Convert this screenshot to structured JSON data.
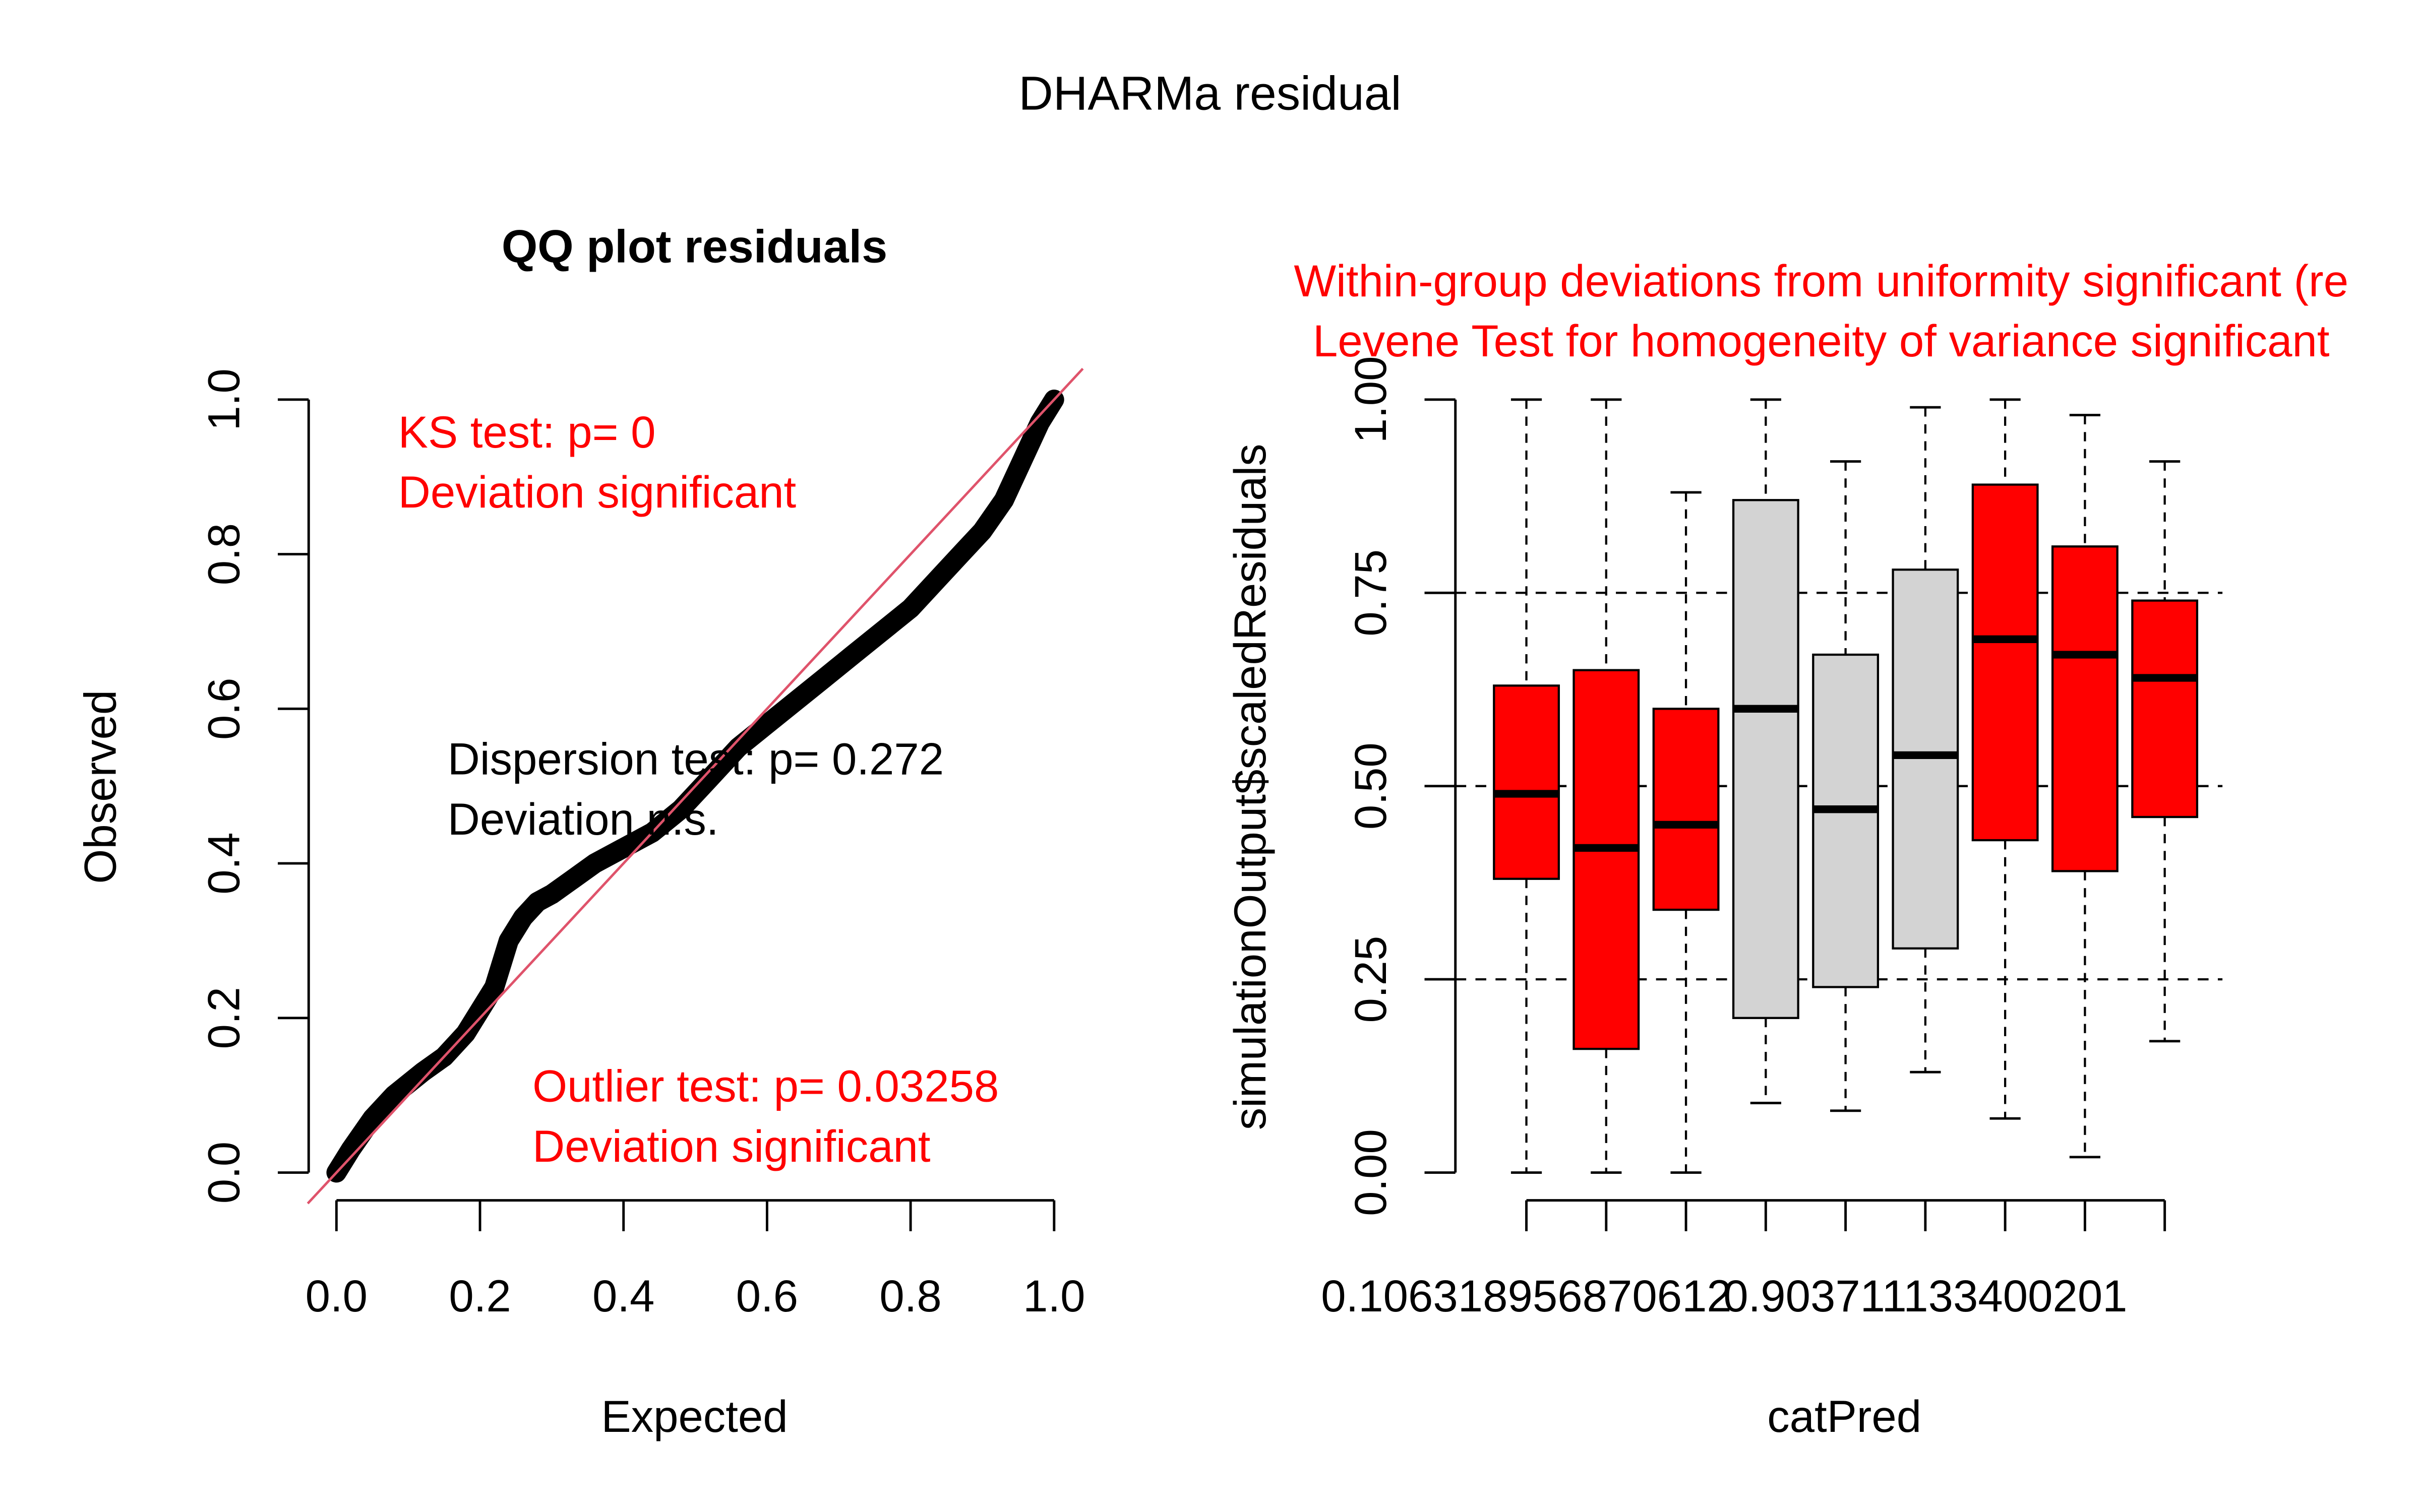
{
  "figure": {
    "title": "DHARMa residual"
  },
  "chart_data": [
    {
      "type": "scatter",
      "title": "QQ plot residuals",
      "xlabel": "Expected",
      "ylabel": "Observed",
      "xlim": [
        0,
        1
      ],
      "ylim": [
        0,
        1
      ],
      "xticks": [
        "0.0",
        "0.2",
        "0.4",
        "0.6",
        "0.8",
        "1.0"
      ],
      "yticks": [
        "0.0",
        "0.2",
        "0.4",
        "0.6",
        "0.8",
        "1.0"
      ],
      "reference_line": {
        "from": [
          0,
          0
        ],
        "to": [
          1,
          1
        ],
        "color": "#DF536B"
      },
      "point_color": "#000000",
      "qq_curve": {
        "x": [
          0.0,
          0.02,
          0.05,
          0.08,
          0.12,
          0.15,
          0.18,
          0.2,
          0.22,
          0.24,
          0.26,
          0.28,
          0.3,
          0.33,
          0.36,
          0.4,
          0.44,
          0.48,
          0.52,
          0.56,
          0.6,
          0.64,
          0.68,
          0.72,
          0.76,
          0.8,
          0.84,
          0.87,
          0.9,
          0.93,
          0.96,
          0.98,
          1.0
        ],
        "y": [
          0.0,
          0.03,
          0.07,
          0.1,
          0.13,
          0.15,
          0.18,
          0.21,
          0.24,
          0.3,
          0.33,
          0.35,
          0.36,
          0.38,
          0.4,
          0.42,
          0.44,
          0.47,
          0.51,
          0.55,
          0.58,
          0.61,
          0.64,
          0.67,
          0.7,
          0.73,
          0.77,
          0.8,
          0.83,
          0.87,
          0.93,
          0.97,
          1.0
        ]
      },
      "annotations": {
        "ks_line1": "KS test: p= 0",
        "ks_line2": "Deviation  significant",
        "dispersion_line1": "Dispersion test: p= 0.272",
        "dispersion_line2": "Deviation n.s.",
        "outlier_line1": "Outlier test: p= 0.03258",
        "outlier_line2": "Deviation  significant"
      },
      "annotation_colors": {
        "significant": "#FF0000",
        "ns": "#000000"
      }
    },
    {
      "type": "box",
      "title_line1": "Within-group deviations from uniformity significant (re",
      "title_line2": "Levene Test for homogeneity of variance significant",
      "title_color": "#FF0000",
      "xlabel": "catPred",
      "ylabel": "simulationOutput$scaledResiduals",
      "ylim": [
        0,
        1
      ],
      "yticks": [
        "0.00",
        "0.25",
        "0.50",
        "0.75",
        "1.00"
      ],
      "xtick_labels": [
        "0.106318956870612",
        "0.903711133400201"
      ],
      "hlines": [
        0.25,
        0.5,
        0.75
      ],
      "colors": {
        "flagged": "#FF0000",
        "normal": "#D3D3D3"
      },
      "boxes": [
        {
          "min": 0.0,
          "q1": 0.38,
          "median": 0.49,
          "q3": 0.63,
          "max": 1.0,
          "flagged": true
        },
        {
          "min": 0.0,
          "q1": 0.16,
          "median": 0.42,
          "q3": 0.65,
          "max": 1.0,
          "flagged": true
        },
        {
          "min": 0.0,
          "q1": 0.34,
          "median": 0.45,
          "q3": 0.6,
          "max": 0.88,
          "flagged": true
        },
        {
          "min": 0.09,
          "q1": 0.2,
          "median": 0.6,
          "q3": 0.87,
          "max": 1.0,
          "flagged": false
        },
        {
          "min": 0.08,
          "q1": 0.24,
          "median": 0.47,
          "q3": 0.67,
          "max": 0.92,
          "flagged": false
        },
        {
          "min": 0.13,
          "q1": 0.29,
          "median": 0.54,
          "q3": 0.78,
          "max": 0.99,
          "flagged": false
        },
        {
          "min": 0.07,
          "q1": 0.43,
          "median": 0.69,
          "q3": 0.89,
          "max": 1.0,
          "flagged": true
        },
        {
          "min": 0.02,
          "q1": 0.39,
          "median": 0.67,
          "q3": 0.81,
          "max": 0.98,
          "flagged": true
        },
        {
          "min": 0.17,
          "q1": 0.46,
          "median": 0.64,
          "q3": 0.74,
          "max": 0.92,
          "flagged": true
        }
      ]
    }
  ]
}
